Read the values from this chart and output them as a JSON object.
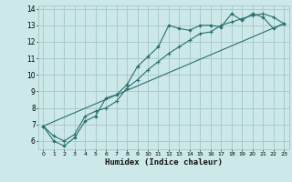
{
  "title": "",
  "xlabel": "Humidex (Indice chaleur)",
  "bg_color": "#cce8e8",
  "grid_color": "#aacccc",
  "line_color": "#2a7070",
  "xlim": [
    -0.5,
    23.5
  ],
  "ylim": [
    5.5,
    14.2
  ],
  "yticks": [
    6,
    7,
    8,
    9,
    10,
    11,
    12,
    13,
    14
  ],
  "xticks": [
    0,
    1,
    2,
    3,
    4,
    5,
    6,
    7,
    8,
    9,
    10,
    11,
    12,
    13,
    14,
    15,
    16,
    17,
    18,
    19,
    20,
    21,
    22,
    23
  ],
  "line1_x": [
    0,
    1,
    2,
    3,
    4,
    5,
    6,
    7,
    8,
    9,
    10,
    11,
    12,
    13,
    14,
    15,
    16,
    17,
    18,
    19,
    20,
    21,
    22,
    23
  ],
  "line1_y": [
    6.9,
    6.0,
    5.7,
    6.2,
    7.2,
    7.5,
    8.6,
    8.8,
    9.4,
    10.5,
    11.1,
    11.7,
    13.0,
    12.8,
    12.7,
    13.0,
    13.0,
    12.9,
    13.7,
    13.3,
    13.7,
    13.5,
    12.8,
    13.1
  ],
  "line2_x": [
    0,
    1,
    2,
    3,
    4,
    5,
    6,
    7,
    8,
    9,
    10,
    11,
    12,
    13,
    14,
    15,
    16,
    17,
    18,
    19,
    20,
    21,
    22,
    23
  ],
  "line2_y": [
    6.9,
    6.3,
    6.0,
    6.4,
    7.5,
    7.8,
    8.0,
    8.4,
    9.2,
    9.7,
    10.3,
    10.8,
    11.3,
    11.7,
    12.1,
    12.5,
    12.6,
    13.0,
    13.2,
    13.4,
    13.6,
    13.7,
    13.5,
    13.1
  ],
  "line3_x": [
    0,
    23
  ],
  "line3_y": [
    6.9,
    13.1
  ]
}
